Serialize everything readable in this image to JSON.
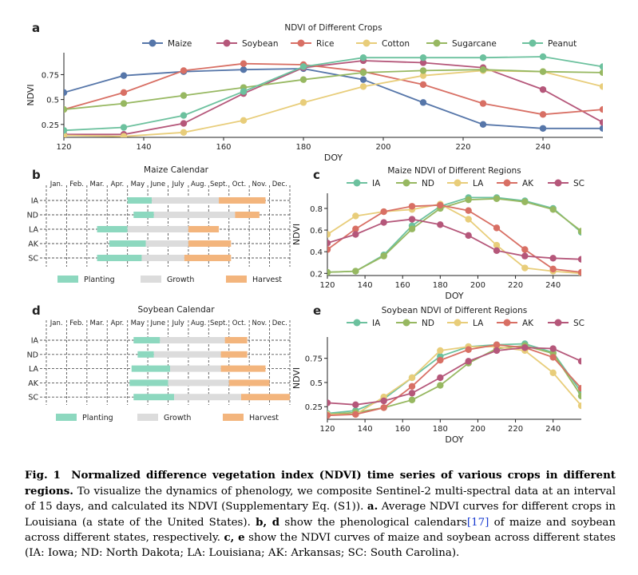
{
  "colors": {
    "Maize": "#5676a9",
    "Soybean": "#b5577a",
    "Rice": "#d86f64",
    "Cotton": "#e8cd7a",
    "Sugarcane": "#97b861",
    "Peanut": "#6cc19e",
    "IA": "#6cc19e",
    "ND": "#97b861",
    "LA": "#e8cd7a",
    "AK": "#d86f64",
    "SC": "#b5577a",
    "Planting": "#8dd8bf",
    "Growth": "#dcdcdc",
    "Harvest": "#f3b57d"
  },
  "panel_a": {
    "letter": "a",
    "chart_data": {
      "type": "line",
      "title": "NDVI of Different Crops",
      "xlabel": "DOY",
      "ylabel": "NDVI",
      "x": [
        120,
        135,
        150,
        165,
        180,
        195,
        210,
        225,
        240,
        255
      ],
      "xticks": [
        120,
        140,
        160,
        180,
        200,
        220,
        240
      ],
      "yticks": [
        0.25,
        0.5,
        0.75
      ],
      "xlim": [
        120,
        255
      ],
      "ylim": [
        0.12,
        0.97
      ],
      "legend": "top",
      "series": [
        {
          "name": "Maize",
          "values": [
            0.57,
            0.74,
            0.78,
            0.8,
            0.81,
            0.7,
            0.47,
            0.25,
            0.21,
            0.21
          ]
        },
        {
          "name": "Soybean",
          "values": [
            0.15,
            0.15,
            0.26,
            0.56,
            0.82,
            0.89,
            0.87,
            0.82,
            0.6,
            0.27
          ]
        },
        {
          "name": "Rice",
          "values": [
            0.4,
            0.57,
            0.79,
            0.86,
            0.85,
            0.78,
            0.65,
            0.46,
            0.35,
            0.4
          ]
        },
        {
          "name": "Cotton",
          "values": [
            0.14,
            0.13,
            0.17,
            0.29,
            0.47,
            0.63,
            0.74,
            0.79,
            0.78,
            0.63
          ]
        },
        {
          "name": "Sugarcane",
          "values": [
            0.4,
            0.46,
            0.54,
            0.62,
            0.7,
            0.77,
            0.79,
            0.8,
            0.78,
            0.77
          ]
        },
        {
          "name": "Peanut",
          "values": [
            0.19,
            0.22,
            0.34,
            0.58,
            0.83,
            0.92,
            0.92,
            0.92,
            0.93,
            0.83
          ]
        }
      ]
    }
  },
  "panel_b": {
    "letter": "b",
    "title": "Maize Calendar",
    "months": [
      "Jan.",
      "Feb.",
      "Mar.",
      "Apr.",
      "May",
      "June",
      "July",
      "Aug.",
      "Sept.",
      "Oct.",
      "Nov.",
      "Dec."
    ],
    "rows": [
      {
        "label": "IA",
        "planting": [
          4.0,
          5.2
        ],
        "growth": [
          5.2,
          8.5
        ],
        "harvest": [
          8.5,
          10.8
        ]
      },
      {
        "label": "ND",
        "planting": [
          4.3,
          5.3
        ],
        "growth": [
          5.3,
          9.3
        ],
        "harvest": [
          9.3,
          10.5
        ]
      },
      {
        "label": "LA",
        "planting": [
          2.5,
          4.0
        ],
        "growth": [
          4.0,
          7.0
        ],
        "harvest": [
          7.0,
          8.5
        ]
      },
      {
        "label": "AK",
        "planting": [
          3.1,
          4.9
        ],
        "growth": [
          4.9,
          7.0
        ],
        "harvest": [
          7.0,
          9.1
        ]
      },
      {
        "label": "SC",
        "planting": [
          2.5,
          4.7
        ],
        "growth": [
          4.7,
          6.8
        ],
        "harvest": [
          6.8,
          9.1
        ]
      }
    ],
    "legend": [
      "Planting",
      "Growth",
      "Harvest"
    ]
  },
  "panel_d": {
    "letter": "d",
    "title": "Soybean Calendar",
    "months": [
      "Jan.",
      "Feb.",
      "Mar.",
      "Apr.",
      "May",
      "June",
      "July",
      "Aug.",
      "Sept.",
      "Oct.",
      "Nov.",
      "Dec."
    ],
    "rows": [
      {
        "label": "IA",
        "planting": [
          4.3,
          5.6
        ],
        "growth": [
          5.6,
          8.8
        ],
        "harvest": [
          8.8,
          9.9
        ]
      },
      {
        "label": "ND",
        "planting": [
          4.5,
          5.3
        ],
        "growth": [
          5.3,
          8.6
        ],
        "harvest": [
          8.6,
          9.9
        ]
      },
      {
        "label": "LA",
        "planting": [
          4.2,
          6.1
        ],
        "growth": [
          6.1,
          8.6
        ],
        "harvest": [
          8.6,
          10.8
        ]
      },
      {
        "label": "AK",
        "planting": [
          4.1,
          6.0
        ],
        "growth": [
          6.0,
          9.0
        ],
        "harvest": [
          9.0,
          11.0
        ]
      },
      {
        "label": "SC",
        "planting": [
          4.3,
          6.3
        ],
        "growth": [
          6.3,
          9.6
        ],
        "harvest": [
          9.6,
          12.0
        ]
      }
    ],
    "legend": [
      "Planting",
      "Growth",
      "Harvest"
    ]
  },
  "panel_c": {
    "letter": "c",
    "chart_data": {
      "type": "line",
      "title": "Maize NDVI of Different Regions",
      "xlabel": "DOY",
      "ylabel": "NDVI",
      "x": [
        120,
        135,
        150,
        165,
        180,
        195,
        210,
        225,
        240,
        255
      ],
      "xticks": [
        120,
        140,
        160,
        180,
        200,
        220,
        240
      ],
      "yticks": [
        0.2,
        0.4,
        0.6,
        0.8
      ],
      "xlim": [
        120,
        255
      ],
      "ylim": [
        0.18,
        0.94
      ],
      "legend": "top",
      "series": [
        {
          "name": "IA",
          "values": [
            0.21,
            0.22,
            0.37,
            0.64,
            0.82,
            0.9,
            0.9,
            0.87,
            0.8,
            0.58
          ]
        },
        {
          "name": "ND",
          "values": [
            0.21,
            0.22,
            0.36,
            0.61,
            0.8,
            0.88,
            0.89,
            0.86,
            0.79,
            0.59
          ]
        },
        {
          "name": "LA",
          "values": [
            0.56,
            0.73,
            0.77,
            0.79,
            0.84,
            0.7,
            0.46,
            0.25,
            0.22,
            0.2
          ]
        },
        {
          "name": "AK",
          "values": [
            0.42,
            0.61,
            0.77,
            0.82,
            0.83,
            0.78,
            0.62,
            0.42,
            0.24,
            0.21
          ]
        },
        {
          "name": "SC",
          "values": [
            0.48,
            0.56,
            0.67,
            0.7,
            0.65,
            0.55,
            0.41,
            0.36,
            0.34,
            0.33
          ]
        }
      ]
    }
  },
  "panel_e": {
    "letter": "e",
    "chart_data": {
      "type": "line",
      "title": "Soybean NDVI of Different Regions",
      "xlabel": "DOY",
      "ylabel": "NDVI",
      "x": [
        120,
        135,
        150,
        165,
        180,
        195,
        210,
        225,
        240,
        255
      ],
      "xticks": [
        120,
        140,
        160,
        180,
        200,
        220,
        240
      ],
      "yticks": [
        0.25,
        0.5,
        0.75
      ],
      "xlim": [
        120,
        255
      ],
      "ylim": [
        0.12,
        0.97
      ],
      "legend": "top",
      "series": [
        {
          "name": "IA",
          "values": [
            0.18,
            0.21,
            0.33,
            0.55,
            0.77,
            0.87,
            0.89,
            0.9,
            0.81,
            0.4
          ]
        },
        {
          "name": "ND",
          "values": [
            0.17,
            0.19,
            0.24,
            0.32,
            0.47,
            0.7,
            0.85,
            0.88,
            0.8,
            0.36
          ]
        },
        {
          "name": "LA",
          "values": [
            0.17,
            0.17,
            0.35,
            0.55,
            0.83,
            0.87,
            0.87,
            0.83,
            0.6,
            0.26
          ]
        },
        {
          "name": "AK",
          "values": [
            0.16,
            0.17,
            0.24,
            0.46,
            0.73,
            0.84,
            0.89,
            0.86,
            0.76,
            0.44
          ]
        },
        {
          "name": "SC",
          "values": [
            0.29,
            0.27,
            0.31,
            0.39,
            0.55,
            0.72,
            0.83,
            0.86,
            0.85,
            0.72
          ]
        }
      ]
    }
  },
  "caption": {
    "label": "Fig. 1",
    "bold_title": "Normalized difference vegetation index (NDVI) time series of various crops in different regions.",
    "text1": " To visualize the dynamics of phenology, we composite Sentinel-2 multi-spectral data at an interval of 15 days, and calculated its NDVI (Supplementary Eq. (S1)). ",
    "a_label": "a.",
    "text2": " Average NDVI curves for different crops in Louisiana (a state of the United States). ",
    "bd_label": "b, d",
    "text3": " show the phenological calendars",
    "ref": "[17]",
    "text4": " of maize and soybean across different states, respectively. ",
    "ce_label": "c, e",
    "text5": " show the NDVI curves of maize and soybean across different states (IA: Iowa; ND: North Dakota; LA: Louisiana; AK: Arkansas; SC: South Carolina)."
  }
}
